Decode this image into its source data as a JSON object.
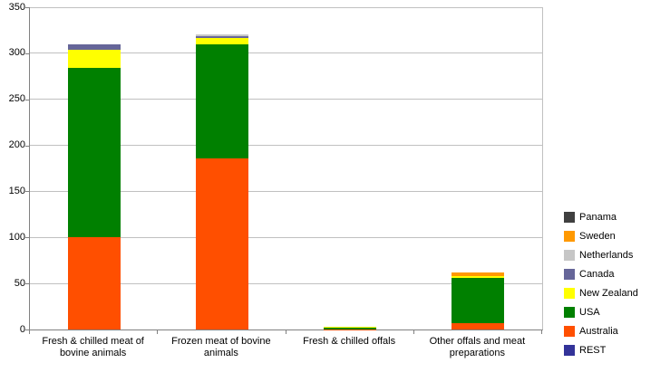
{
  "chart_data": {
    "type": "bar",
    "stacked": true,
    "title": "",
    "categories": [
      "Fresh & chilled meat of bovine animals",
      "Frozen meat of bovine animals",
      "Fresh & chilled offals",
      "Other offals and meat preparations"
    ],
    "series": [
      {
        "name": "REST",
        "color": "#333399",
        "values": [
          0,
          0,
          0,
          0
        ]
      },
      {
        "name": "Australia",
        "color": "#ff4f00",
        "values": [
          100,
          186,
          0.5,
          7
        ]
      },
      {
        "name": "USA",
        "color": "#008000",
        "values": [
          184,
          124,
          1,
          49
        ]
      },
      {
        "name": "New Zealand",
        "color": "#ffff00",
        "values": [
          20,
          7,
          1,
          2
        ]
      },
      {
        "name": "Canada",
        "color": "#666699",
        "values": [
          6,
          2,
          0,
          0
        ]
      },
      {
        "name": "Netherlands",
        "color": "#c6c6c6",
        "values": [
          0,
          2,
          0,
          0
        ]
      },
      {
        "name": "Sweden",
        "color": "#ff9900",
        "values": [
          0,
          0,
          0,
          4
        ]
      },
      {
        "name": "Panama",
        "color": "#404040",
        "values": [
          0,
          0,
          0,
          0
        ]
      }
    ],
    "legend": {
      "position": "right",
      "order": [
        "Panama",
        "Sweden",
        "Netherlands",
        "Canada",
        "New Zealand",
        "USA",
        "Australia",
        "REST"
      ]
    },
    "y_axis": {
      "min": 0,
      "max": 350,
      "step": 50,
      "tick_labels": [
        "0",
        "50",
        "100",
        "150",
        "200",
        "250",
        "300",
        "350"
      ]
    },
    "x_axis": {
      "label": ""
    },
    "grid": true
  },
  "style": {
    "background": "#ffffff",
    "gridline_color": "#c0c0c0",
    "axis_color": "#808080",
    "text_color": "#000000"
  }
}
